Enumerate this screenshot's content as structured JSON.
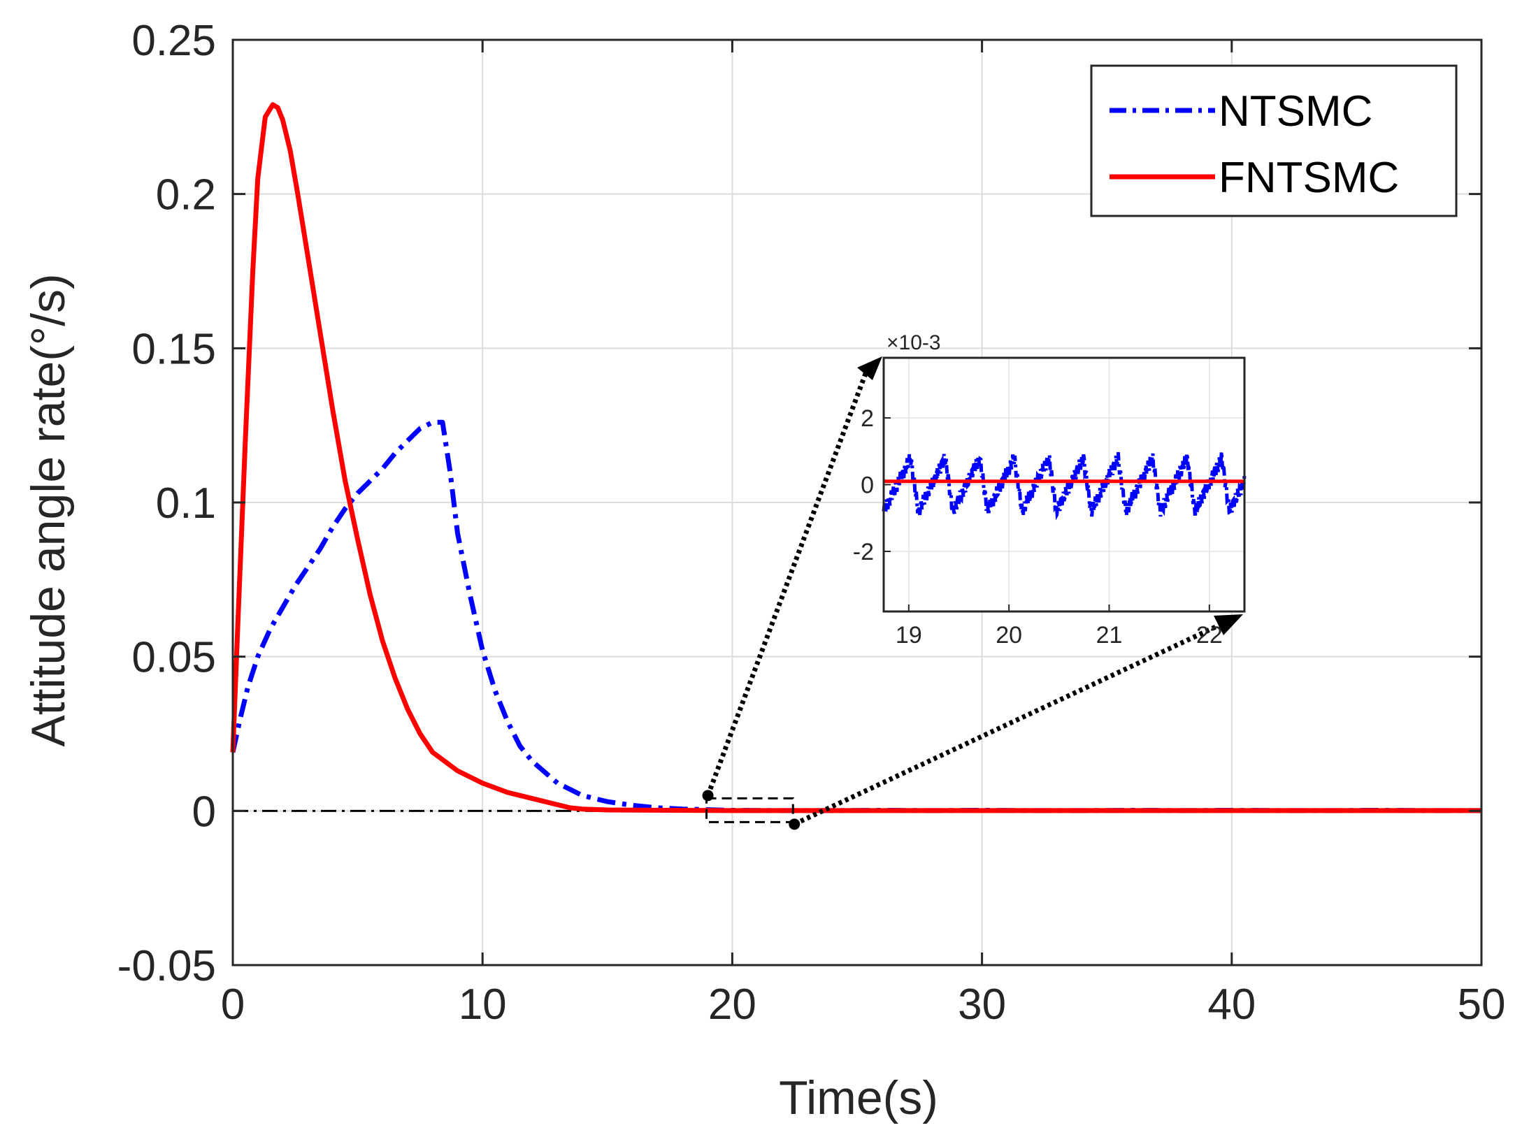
{
  "chart_data": [
    {
      "type": "line",
      "panel": "main",
      "xlabel": "Time(s)",
      "ylabel": "Attitude angle rate(°/s)",
      "xlim": [
        0,
        50
      ],
      "ylim": [
        -0.05,
        0.25
      ],
      "xticks": [
        0,
        10,
        20,
        30,
        40,
        50
      ],
      "xtick_labels": [
        "0",
        "10",
        "20",
        "30",
        "40",
        "50"
      ],
      "yticks": [
        -0.05,
        0,
        0.05,
        0.1,
        0.15,
        0.2,
        0.25
      ],
      "ytick_labels": [
        "-0.05",
        "0",
        "0.05",
        "0.1",
        "0.15",
        "0.2",
        "0.25"
      ],
      "grid": true,
      "legend_position": "top-right",
      "reference_line": {
        "y": 0,
        "style": "dash-dot",
        "color": "#000000"
      },
      "series": [
        {
          "name": "NTSMC",
          "color": "#0000ff",
          "style": "dash-dot",
          "x": [
            0,
            0.3,
            0.6,
            1.0,
            1.5,
            2,
            2.5,
            3,
            3.5,
            4,
            4.5,
            5,
            5.5,
            6,
            6.5,
            7,
            7.5,
            8,
            8.4,
            8.7,
            9,
            9.5,
            10,
            10.5,
            11,
            11.5,
            12,
            13,
            14,
            15,
            16,
            17,
            18,
            19,
            20,
            22,
            24,
            26,
            28,
            30,
            32,
            34,
            36,
            38,
            40,
            42,
            44,
            46,
            48,
            50
          ],
          "y": [
            0.019,
            0.03,
            0.04,
            0.05,
            0.059,
            0.066,
            0.073,
            0.079,
            0.085,
            0.092,
            0.098,
            0.103,
            0.107,
            0.111,
            0.116,
            0.12,
            0.124,
            0.126,
            0.126,
            0.11,
            0.09,
            0.07,
            0.052,
            0.039,
            0.029,
            0.021,
            0.016,
            0.009,
            0.005,
            0.003,
            0.0018,
            0.001,
            0.0006,
            0.0004,
            0.0002,
            0.0001,
            0.0001,
            0.0002,
            0.0001,
            0.0002,
            0.0001,
            0.0001,
            0.0002,
            0.0001,
            0.0002,
            0.0001,
            0.0001,
            0.0002,
            0.0001,
            0.0001
          ]
        },
        {
          "name": "FNTSMC",
          "color": "#ff0000",
          "style": "solid",
          "x": [
            0,
            0.2,
            0.5,
            0.8,
            1.0,
            1.3,
            1.6,
            1.8,
            2.0,
            2.3,
            2.6,
            3,
            3.5,
            4,
            4.5,
            5,
            5.5,
            6,
            6.5,
            7,
            7.5,
            8,
            8.5,
            9,
            10,
            11,
            12,
            13,
            13.5,
            14,
            15,
            20,
            25,
            30,
            35,
            40,
            45,
            50
          ],
          "y": [
            0.019,
            0.06,
            0.12,
            0.175,
            0.205,
            0.225,
            0.229,
            0.228,
            0.224,
            0.214,
            0.2,
            0.18,
            0.155,
            0.13,
            0.107,
            0.088,
            0.07,
            0.055,
            0.043,
            0.033,
            0.025,
            0.019,
            0.016,
            0.013,
            0.009,
            0.006,
            0.004,
            0.002,
            0.001,
            0.0006,
            0.0003,
            0.0001,
            0.0001,
            0.0001,
            0.0001,
            0.0001,
            0.0001,
            0.0001
          ]
        }
      ]
    },
    {
      "type": "line",
      "panel": "inset",
      "xlim": [
        18.75,
        22.35
      ],
      "ylim": [
        -0.0038,
        0.0038
      ],
      "xticks": [
        19,
        20,
        21,
        22
      ],
      "xtick_labels": [
        "19",
        "20",
        "21",
        "22"
      ],
      "yticks": [
        -0.002,
        0,
        0.002
      ],
      "ytick_labels": [
        "-2",
        "0",
        "2"
      ],
      "exponent_label": "×10-3",
      "zoom_region_x": [
        18.8,
        22.6
      ],
      "zoom_region_y": [
        -0.0005,
        0.0005
      ],
      "series": [
        {
          "name": "NTSMC",
          "color": "#0000ff",
          "style": "dash-dot",
          "period": 0.345,
          "amplitude": 0.0008
        },
        {
          "name": "FNTSMC",
          "color": "#ff0000",
          "style": "solid",
          "y": 0.0001
        }
      ]
    }
  ]
}
